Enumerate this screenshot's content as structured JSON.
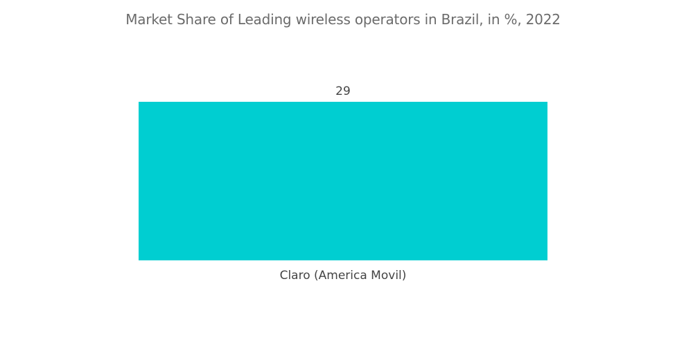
{
  "title": "Market Share of Leading wireless operators in Brazil, in %, 2022",
  "colors": {
    "bar": "#00ced1"
  },
  "chart_data": {
    "type": "bar",
    "title": "Market Share of Leading wireless operators in Brazil, in %, 2022",
    "categories": [
      "Claro (America Movil)"
    ],
    "values": [
      29
    ],
    "data_labels": [
      "29"
    ],
    "xlabel": "",
    "ylabel": "",
    "ylim": [
      0,
      29
    ],
    "grid": false,
    "legend": "none"
  }
}
